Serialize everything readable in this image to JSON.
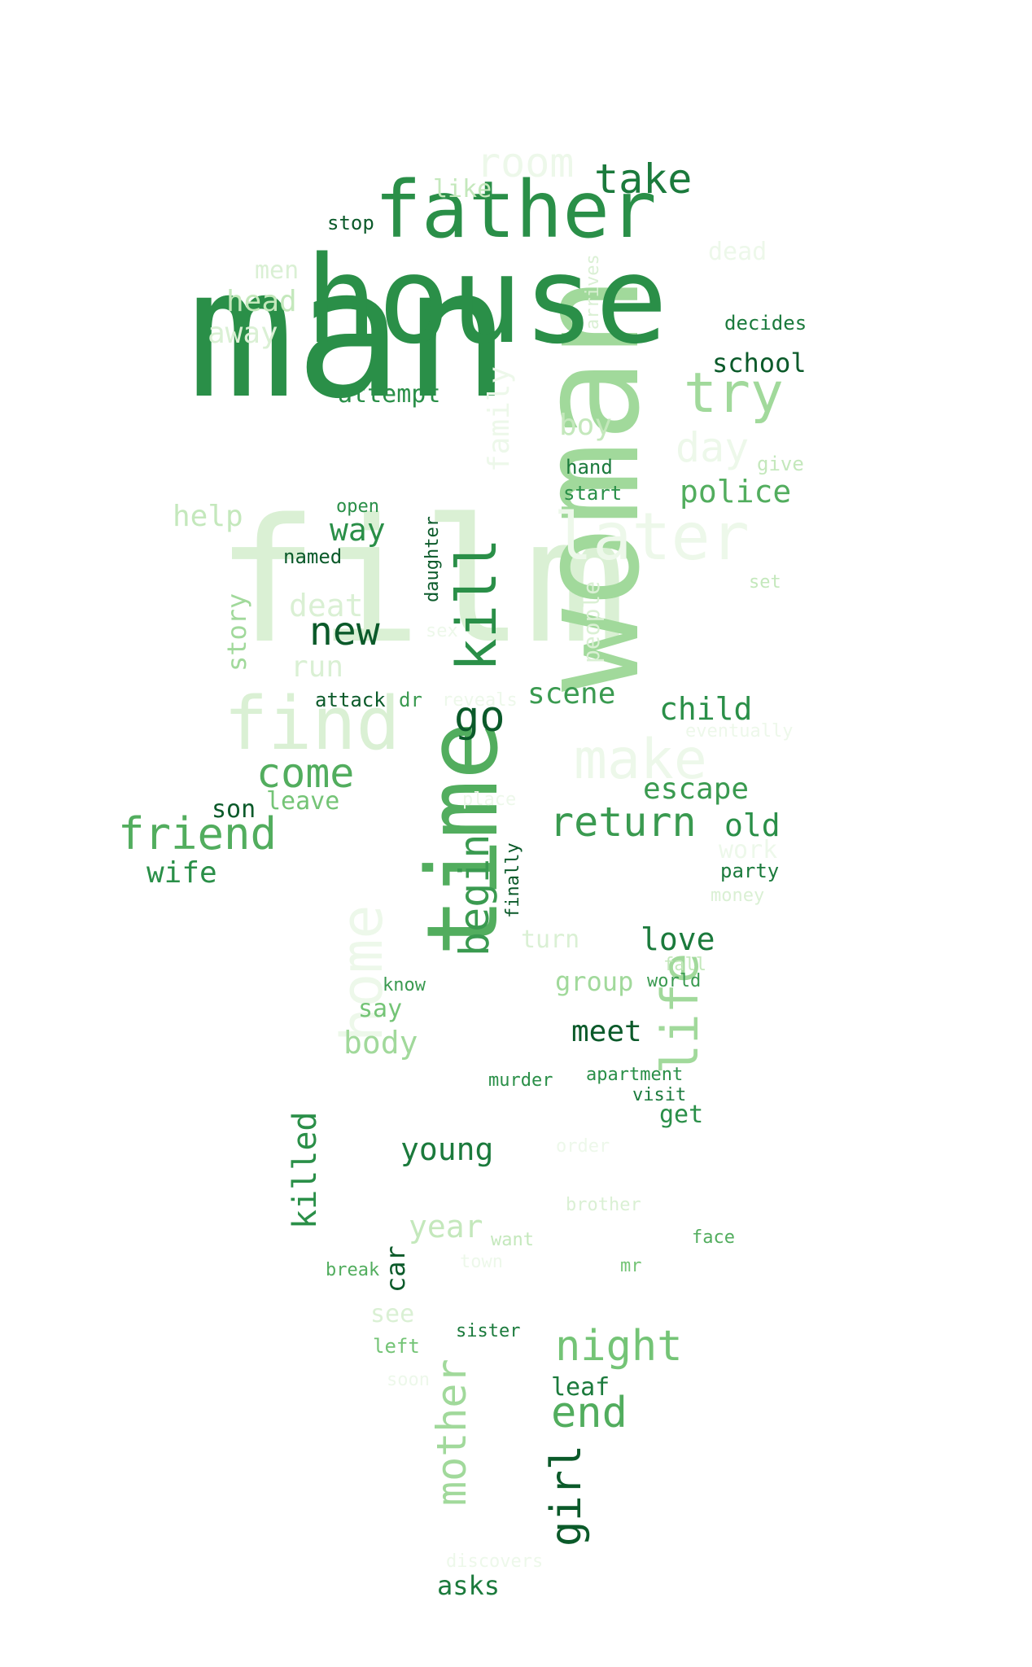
{
  "palette": {
    "g1": "#edf8ea",
    "g2": "#daf0d4",
    "g3": "#c4e8bc",
    "g4": "#a1d99b",
    "g5": "#74c476",
    "g6": "#52ad5e",
    "g7": "#3a9a50",
    "g8": "#2a8f48",
    "g9": "#1b7a3c",
    "g10": "#0b5a2a"
  },
  "words": [
    {
      "text": "man",
      "color": "g8"
    },
    {
      "text": "film",
      "color": "g2"
    },
    {
      "text": "woman",
      "color": "g4"
    },
    {
      "text": "house",
      "color": "g8"
    },
    {
      "text": "time",
      "color": "g6"
    },
    {
      "text": "father",
      "color": "g8"
    },
    {
      "text": "find",
      "color": "g2"
    },
    {
      "text": "later",
      "color": "g1"
    },
    {
      "text": "life",
      "color": "g4"
    },
    {
      "text": "home",
      "color": "g1"
    },
    {
      "text": "kill",
      "color": "g8"
    },
    {
      "text": "make",
      "color": "g1"
    },
    {
      "text": "try",
      "color": "g4"
    },
    {
      "text": "take",
      "color": "g9"
    },
    {
      "text": "room",
      "color": "g1"
    },
    {
      "text": "return",
      "color": "g7"
    },
    {
      "text": "begin",
      "color": "g7"
    },
    {
      "text": "mother",
      "color": "g4"
    },
    {
      "text": "night",
      "color": "g5"
    },
    {
      "text": "friend",
      "color": "g6"
    },
    {
      "text": "girl",
      "color": "g10"
    },
    {
      "text": "go",
      "color": "g10"
    },
    {
      "text": "come",
      "color": "g6"
    },
    {
      "text": "end",
      "color": "g6"
    },
    {
      "text": "new",
      "color": "g10"
    },
    {
      "text": "day",
      "color": "g1"
    },
    {
      "text": "killed",
      "color": "g8"
    },
    {
      "text": "police",
      "color": "g6"
    },
    {
      "text": "death",
      "color": "g2"
    },
    {
      "text": "young",
      "color": "g9"
    },
    {
      "text": "child",
      "color": "g8"
    },
    {
      "text": "escape",
      "color": "g7"
    },
    {
      "text": "family",
      "color": "g1"
    },
    {
      "text": "body",
      "color": "g4"
    },
    {
      "text": "year",
      "color": "g3"
    },
    {
      "text": "scene",
      "color": "g7"
    },
    {
      "text": "love",
      "color": "g9"
    },
    {
      "text": "meet",
      "color": "g10"
    },
    {
      "text": "old",
      "color": "g8"
    },
    {
      "text": "way",
      "color": "g8"
    },
    {
      "text": "boy",
      "color": "g3"
    },
    {
      "text": "help",
      "color": "g3"
    },
    {
      "text": "head",
      "color": "g3"
    },
    {
      "text": "wife",
      "color": "g8"
    },
    {
      "text": "run",
      "color": "g2"
    },
    {
      "text": "story",
      "color": "g4"
    },
    {
      "text": "school",
      "color": "g10"
    },
    {
      "text": "away",
      "color": "g2"
    },
    {
      "text": "attempt",
      "color": "g8"
    },
    {
      "text": "car",
      "color": "g10"
    },
    {
      "text": "group",
      "color": "g4"
    },
    {
      "text": "leave",
      "color": "g5"
    },
    {
      "text": "son",
      "color": "g10"
    },
    {
      "text": "say",
      "color": "g5"
    },
    {
      "text": "leaf",
      "color": "g9"
    },
    {
      "text": "like",
      "color": "g3"
    },
    {
      "text": "men",
      "color": "g2"
    },
    {
      "text": "dead",
      "color": "g1"
    },
    {
      "text": "people",
      "color": "g2"
    },
    {
      "text": "turn",
      "color": "g2"
    },
    {
      "text": "work",
      "color": "g1"
    },
    {
      "text": "see",
      "color": "g2"
    },
    {
      "text": "get",
      "color": "g8"
    },
    {
      "text": "daughter",
      "color": "g10"
    },
    {
      "text": "decides",
      "color": "g9"
    },
    {
      "text": "hand",
      "color": "g9"
    },
    {
      "text": "start",
      "color": "g8"
    },
    {
      "text": "give",
      "color": "g3"
    },
    {
      "text": "open",
      "color": "g8"
    },
    {
      "text": "named",
      "color": "g10"
    },
    {
      "text": "stop",
      "color": "g10"
    },
    {
      "text": "arrives",
      "color": "g2"
    },
    {
      "text": "set",
      "color": "g3"
    },
    {
      "text": "sex",
      "color": "g1"
    },
    {
      "text": "attack",
      "color": "g10"
    },
    {
      "text": "dr",
      "color": "g7"
    },
    {
      "text": "reveals",
      "color": "g1"
    },
    {
      "text": "eventually",
      "color": "g1"
    },
    {
      "text": "place",
      "color": "g1"
    },
    {
      "text": "finally",
      "color": "g10"
    },
    {
      "text": "party",
      "color": "g9"
    },
    {
      "text": "money",
      "color": "g2"
    },
    {
      "text": "know",
      "color": "g7"
    },
    {
      "text": "fall",
      "color": "g3"
    },
    {
      "text": "world",
      "color": "g7"
    },
    {
      "text": "murder",
      "color": "g8"
    },
    {
      "text": "apartment",
      "color": "g8"
    },
    {
      "text": "visit",
      "color": "g9"
    },
    {
      "text": "order",
      "color": "g1"
    },
    {
      "text": "brother",
      "color": "g2"
    },
    {
      "text": "want",
      "color": "g3"
    },
    {
      "text": "town",
      "color": "g1"
    },
    {
      "text": "face",
      "color": "g6"
    },
    {
      "text": "break",
      "color": "g6"
    },
    {
      "text": "mr",
      "color": "g5"
    },
    {
      "text": "left",
      "color": "g5"
    },
    {
      "text": "sister",
      "color": "g9"
    },
    {
      "text": "soon",
      "color": "g1"
    },
    {
      "text": "discovers",
      "color": "g1"
    },
    {
      "text": "asks",
      "color": "g9"
    }
  ]
}
